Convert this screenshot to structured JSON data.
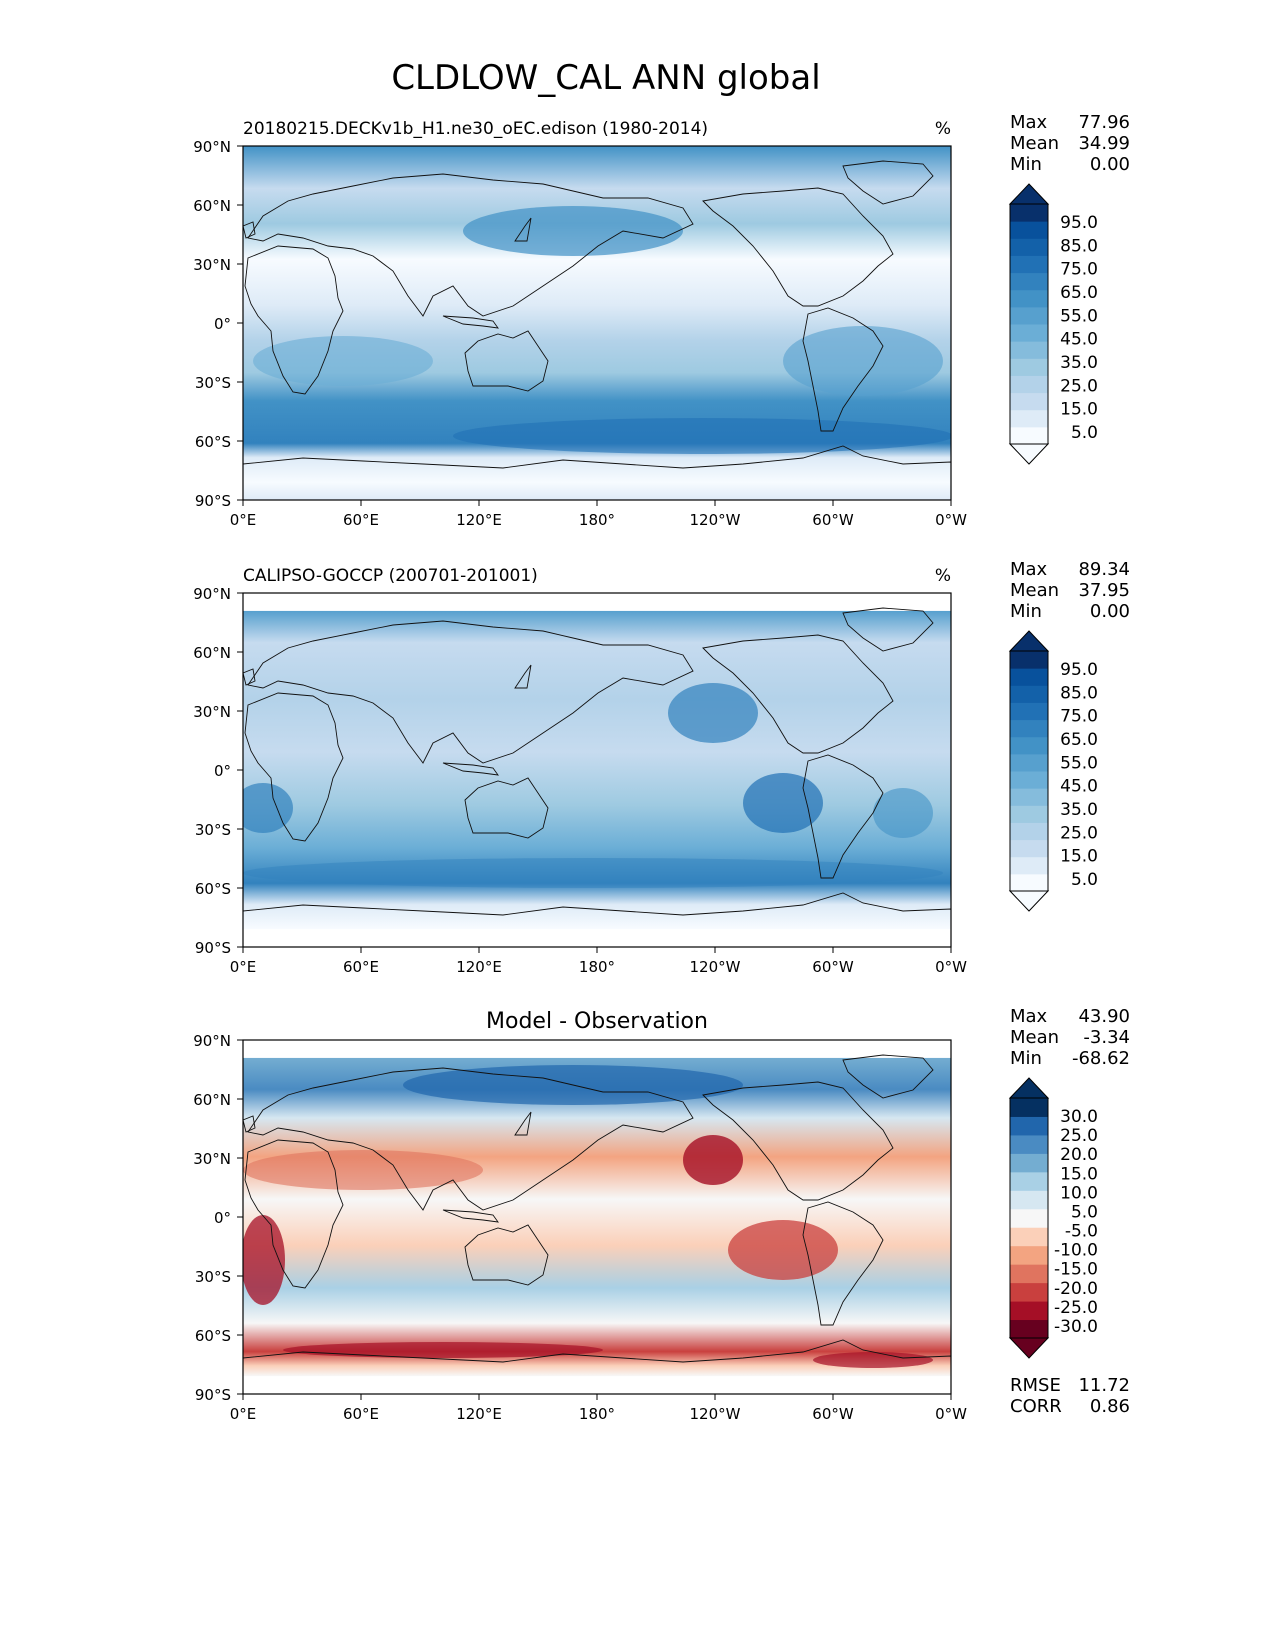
{
  "title": "CLDLOW_CAL ANN global",
  "panels": [
    {
      "id": "model",
      "title_left": "20180215.DECKv1b_H1.ne30_oEC.edison (1980-2014)",
      "title_center": "",
      "units": "%",
      "stats": [
        {
          "label": "Max",
          "value": "77.96"
        },
        {
          "label": "Mean",
          "value": "34.99"
        },
        {
          "label": "Min",
          "value": "0.00"
        }
      ],
      "colorbar_ticks": [
        "95.0",
        "85.0",
        "75.0",
        "65.0",
        "55.0",
        "45.0",
        "35.0",
        "25.0",
        "15.0",
        "5.0"
      ],
      "colorbar_colors": [
        "#f7fbff",
        "#deebf7",
        "#c6dbef",
        "#b3d2e9",
        "#9ecae1",
        "#85bcdc",
        "#6baed6",
        "#57a0ce",
        "#4292c6",
        "#3282be",
        "#2171b5",
        "#1361a9",
        "#08519c",
        "#08306b"
      ],
      "footer_stats": []
    },
    {
      "id": "obs",
      "title_left": "CALIPSO-GOCCP (200701-201001)",
      "title_center": "",
      "units": "%",
      "stats": [
        {
          "label": "Max",
          "value": "89.34"
        },
        {
          "label": "Mean",
          "value": "37.95"
        },
        {
          "label": "Min",
          "value": "0.00"
        }
      ],
      "colorbar_ticks": [
        "95.0",
        "85.0",
        "75.0",
        "65.0",
        "55.0",
        "45.0",
        "35.0",
        "25.0",
        "15.0",
        "5.0"
      ],
      "colorbar_colors": [
        "#f7fbff",
        "#deebf7",
        "#c6dbef",
        "#b3d2e9",
        "#9ecae1",
        "#85bcdc",
        "#6baed6",
        "#57a0ce",
        "#4292c6",
        "#3282be",
        "#2171b5",
        "#1361a9",
        "#08519c",
        "#08306b"
      ],
      "footer_stats": []
    },
    {
      "id": "diff",
      "title_left": "",
      "title_center": "Model - Observation",
      "units": "",
      "stats": [
        {
          "label": "Max",
          "value": "43.90"
        },
        {
          "label": "Mean",
          "value": "-3.34"
        },
        {
          "label": "Min",
          "value": "-68.62"
        }
      ],
      "colorbar_ticks": [
        "30.0",
        "25.0",
        "20.0",
        "15.0",
        "10.0",
        "5.0",
        "-5.0",
        "-10.0",
        "-15.0",
        "-20.0",
        "-25.0",
        "-30.0"
      ],
      "colorbar_colors": [
        "#67001f",
        "#a50f26",
        "#c9403e",
        "#e0745f",
        "#f3a481",
        "#fbd0b9",
        "#f7f7f7",
        "#d6e7f1",
        "#a9d0e5",
        "#74add1",
        "#4a8bc2",
        "#2166ac",
        "#053061"
      ],
      "footer_stats": [
        {
          "label": "RMSE",
          "value": "11.72"
        },
        {
          "label": "CORR",
          "value": "0.86"
        }
      ]
    }
  ],
  "axes": {
    "lat_labels": [
      "90°N",
      "60°N",
      "30°N",
      "0°",
      "30°S",
      "60°S",
      "90°S"
    ],
    "lon_labels": [
      "0°E",
      "60°E",
      "120°E",
      "180°",
      "120°W",
      "60°W",
      "0°W"
    ]
  },
  "chart_data": [
    {
      "type": "heatmap",
      "title": "20180215.DECKv1b_H1.ne30_oEC.edison (1980-2014)",
      "variable": "CLDLOW_CAL",
      "units": "%",
      "x_range": [
        0,
        360
      ],
      "y_range": [
        -90,
        90
      ],
      "levels": [
        0,
        5,
        10,
        15,
        20,
        25,
        30,
        35,
        40,
        45,
        50,
        55,
        60,
        65,
        70,
        75,
        80,
        85,
        90,
        95,
        100
      ],
      "stats": {
        "max": 77.96,
        "mean": 34.99,
        "min": 0.0
      }
    },
    {
      "type": "heatmap",
      "title": "CALIPSO-GOCCP (200701-201001)",
      "variable": "CLDLOW_CAL",
      "units": "%",
      "x_range": [
        0,
        360
      ],
      "y_range": [
        -90,
        90
      ],
      "levels": [
        0,
        5,
        10,
        15,
        20,
        25,
        30,
        35,
        40,
        45,
        50,
        55,
        60,
        65,
        70,
        75,
        80,
        85,
        90,
        95,
        100
      ],
      "stats": {
        "max": 89.34,
        "mean": 37.95,
        "min": 0.0
      }
    },
    {
      "type": "heatmap",
      "title": "Model - Observation",
      "variable": "CLDLOW_CAL difference",
      "units": "%",
      "x_range": [
        0,
        360
      ],
      "y_range": [
        -90,
        90
      ],
      "levels": [
        -30,
        -25,
        -20,
        -15,
        -10,
        -5,
        5,
        10,
        15,
        20,
        25,
        30
      ],
      "stats": {
        "max": 43.9,
        "mean": -3.34,
        "min": -68.62,
        "rmse": 11.72,
        "corr": 0.86
      }
    }
  ]
}
